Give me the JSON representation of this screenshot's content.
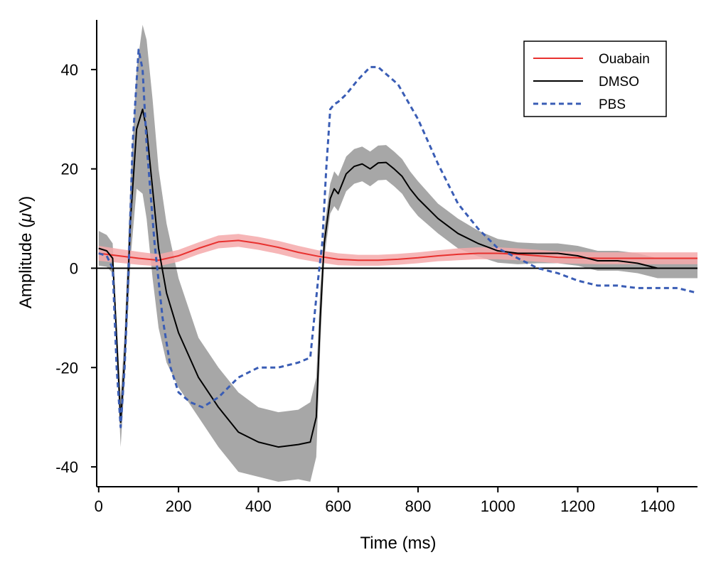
{
  "chart_data": {
    "type": "line",
    "xlabel": "Time (ms)",
    "ylabel_prefix": "Amplitude (",
    "ylabel_mu": "μ",
    "ylabel_suffix": "V)",
    "xlim": [
      -5,
      1500
    ],
    "ylim": [
      -44,
      50
    ],
    "x_ticks": [
      0,
      200,
      400,
      600,
      800,
      1000,
      1200,
      1400
    ],
    "y_ticks": [
      -40,
      -20,
      0,
      20,
      40
    ],
    "zero_line": true,
    "legend_position": "top-right",
    "series": [
      {
        "name": "Ouabain",
        "color": "#e8312f",
        "band_color": "#f4a9aa",
        "style": "solid",
        "x": [
          0,
          50,
          100,
          150,
          200,
          250,
          300,
          350,
          400,
          450,
          500,
          550,
          600,
          650,
          700,
          750,
          800,
          850,
          900,
          950,
          1000,
          1050,
          1100,
          1150,
          1200,
          1250,
          1300,
          1350,
          1400,
          1450,
          1500
        ],
        "y": [
          3,
          2.5,
          2,
          1.6,
          2.5,
          4,
          5.3,
          5.6,
          5,
          4.2,
          3.2,
          2.4,
          1.8,
          1.6,
          1.6,
          1.8,
          2.1,
          2.5,
          2.8,
          3,
          3,
          2.8,
          2.5,
          2.2,
          2.1,
          2,
          2,
          2,
          2,
          2,
          2
        ],
        "band": [
          1.5,
          1.4,
          1.3,
          1.2,
          1.2,
          1.2,
          1.3,
          1.3,
          1.3,
          1.3,
          1.3,
          1.2,
          1.2,
          1.1,
          1.1,
          1.1,
          1.1,
          1.1,
          1.2,
          1.2,
          1.2,
          1.2,
          1.2,
          1.2,
          1.2,
          1.2,
          1.2,
          1.2,
          1.2,
          1.2,
          1.2
        ]
      },
      {
        "name": "DMSO",
        "color": "#000000",
        "band_color": "#a7a7a7",
        "style": "solid",
        "x": [
          0,
          20,
          35,
          45,
          55,
          65,
          80,
          95,
          110,
          120,
          135,
          150,
          170,
          200,
          250,
          300,
          350,
          400,
          450,
          500,
          530,
          545,
          555,
          565,
          580,
          590,
          600,
          610,
          620,
          640,
          660,
          680,
          700,
          720,
          740,
          760,
          780,
          800,
          850,
          900,
          950,
          1000,
          1050,
          1100,
          1150,
          1200,
          1250,
          1300,
          1350,
          1400,
          1450,
          1500
        ],
        "y": [
          4,
          3.5,
          2,
          -14,
          -31,
          -18,
          10,
          28,
          32,
          28,
          16,
          4,
          -5,
          -13,
          -22,
          -28,
          -33,
          -35,
          -36,
          -35.5,
          -35,
          -30,
          -10,
          5,
          14,
          16,
          15,
          17,
          19,
          20.5,
          21,
          20,
          21.2,
          21.3,
          20,
          18.5,
          16,
          14,
          10,
          7,
          5,
          3.5,
          3,
          3,
          3,
          2.5,
          1.5,
          1.5,
          1,
          0,
          0,
          0
        ],
        "band": [
          3.5,
          3.2,
          3,
          3,
          5,
          5,
          8,
          12,
          17,
          18,
          18,
          16,
          14,
          11,
          8,
          8,
          8,
          7,
          7,
          7,
          8,
          8,
          6,
          3,
          3,
          3.5,
          3.5,
          3.5,
          3.5,
          3.5,
          3.5,
          3.5,
          3.5,
          3.5,
          3.5,
          3.5,
          3.5,
          3.5,
          3,
          3,
          2.6,
          2.4,
          2.2,
          2,
          2,
          2,
          2,
          2,
          2,
          2,
          2,
          2
        ]
      },
      {
        "name": "PBS",
        "color": "#3a5db5",
        "style": "dashed",
        "x": [
          0,
          20,
          35,
          45,
          55,
          65,
          75,
          85,
          100,
          110,
          120,
          140,
          160,
          170,
          180,
          200,
          230,
          260,
          300,
          350,
          400,
          450,
          500,
          530,
          540,
          550,
          560,
          570,
          580,
          590,
          600,
          620,
          650,
          680,
          700,
          750,
          800,
          850,
          900,
          950,
          1000,
          1050,
          1100,
          1150,
          1200,
          1250,
          1300,
          1350,
          1400,
          1450,
          1500
        ],
        "y": [
          3,
          2.5,
          0,
          -20,
          -32,
          -20,
          0,
          25,
          44,
          40,
          25,
          5,
          -10,
          -15,
          -20,
          -25,
          -27,
          -28,
          -26,
          -22,
          -20,
          -20,
          -19,
          -18,
          -10,
          -2,
          5,
          20,
          32,
          33,
          33.5,
          35,
          38,
          40.5,
          40.5,
          37,
          30,
          21,
          13,
          8,
          4,
          2,
          0,
          -1,
          -2.5,
          -3.5,
          -3.5,
          -4,
          -4,
          -4,
          -5
        ]
      }
    ]
  }
}
